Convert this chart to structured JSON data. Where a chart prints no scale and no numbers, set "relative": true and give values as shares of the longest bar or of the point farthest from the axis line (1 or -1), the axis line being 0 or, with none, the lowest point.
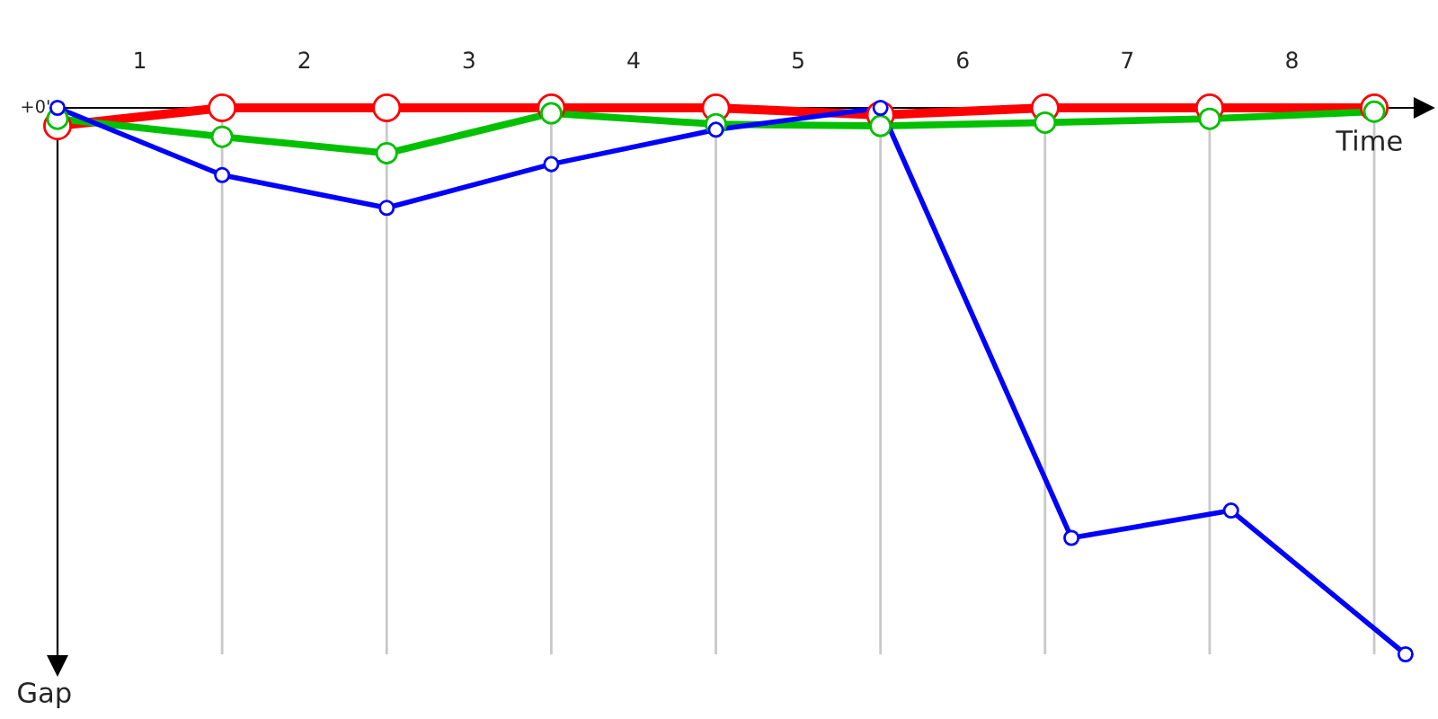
{
  "chart_data": {
    "type": "line",
    "relative": true,
    "xlabel": "Time",
    "ylabel": "Gap",
    "annotations": [
      "+0'"
    ],
    "marker": "circle",
    "grid": false,
    "xlim": [
      0.5,
      8.8
    ],
    "xticks": [
      {
        "value": 1,
        "label": "1"
      },
      {
        "value": 2,
        "label": "2"
      },
      {
        "value": 3,
        "label": "3"
      },
      {
        "value": 4,
        "label": "4"
      },
      {
        "value": 5,
        "label": "5"
      },
      {
        "value": 6,
        "label": "6"
      },
      {
        "value": 7,
        "label": "7"
      },
      {
        "value": 8,
        "label": "8"
      }
    ],
    "ref_lines": [
      {
        "axis": "x",
        "value": 1.5,
        "color": "#c8c8c8"
      },
      {
        "axis": "x",
        "value": 2.5,
        "color": "#c8c8c8"
      },
      {
        "axis": "x",
        "value": 3.5,
        "color": "#c8c8c8"
      },
      {
        "axis": "x",
        "value": 4.5,
        "color": "#c8c8c8"
      },
      {
        "axis": "x",
        "value": 5.5,
        "color": "#c8c8c8"
      },
      {
        "axis": "x",
        "value": 6.5,
        "color": "#c8c8c8"
      },
      {
        "axis": "x",
        "value": 7.5,
        "color": "#c8c8c8"
      },
      {
        "axis": "x",
        "value": 8.5,
        "color": "#c8c8c8"
      }
    ],
    "series": [
      {
        "color": "#ff0000",
        "x": [
          0.5,
          1.5,
          2.5,
          3.5,
          4.5,
          5.5,
          6.5,
          7.5,
          8.5
        ],
        "values": [
          -0.033,
          0,
          0,
          0,
          0,
          -0.013,
          0,
          0,
          0
        ]
      },
      {
        "color": "#00c000",
        "x": [
          0.5,
          1.5,
          2.5,
          3.5,
          4.5,
          5.5,
          6.5,
          7.5,
          8.5
        ],
        "values": [
          -0.02,
          -0.053,
          -0.083,
          -0.01,
          -0.03,
          -0.033,
          -0.027,
          -0.02,
          -0.007
        ]
      },
      {
        "color": "#0000ff",
        "x": [
          0.5,
          1.5,
          2.5,
          3.5,
          4.5,
          5.5,
          6.66,
          7.63,
          8.69
        ],
        "values": [
          0,
          -0.123,
          -0.183,
          -0.103,
          -0.04,
          0,
          -0.787,
          -0.737,
          -1
        ]
      }
    ]
  }
}
